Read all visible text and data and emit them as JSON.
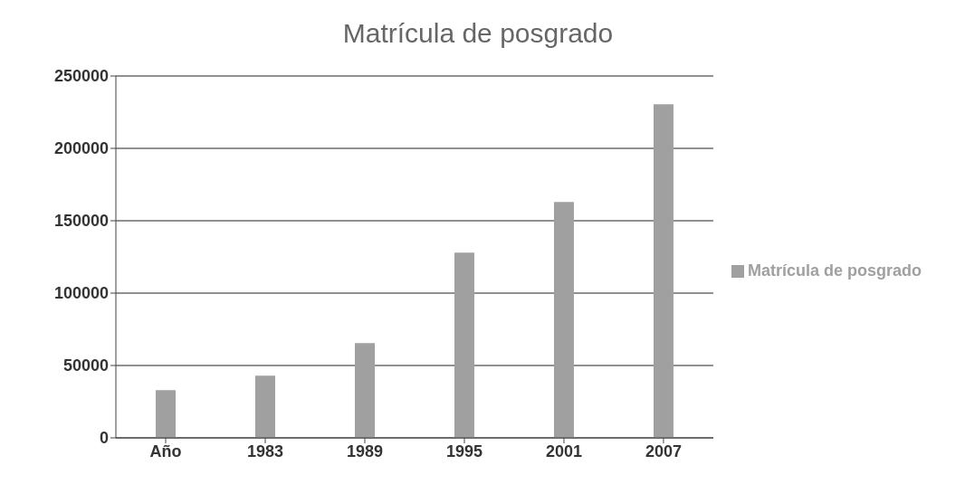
{
  "chart_data": {
    "type": "bar",
    "title": "Matrícula de posgrado",
    "categories": [
      "Año",
      "1983",
      "1989",
      "1995",
      "2001",
      "2007"
    ],
    "series": [
      {
        "name": "Matrícula de posgrado",
        "color": "#a0a0a0",
        "values": [
          33000,
          43000,
          65500,
          128000,
          163000,
          230500
        ]
      }
    ],
    "ylim": [
      0,
      250000
    ],
    "yticks": [
      0,
      50000,
      100000,
      150000,
      200000,
      250000
    ],
    "grid": "y",
    "legend": "right"
  }
}
